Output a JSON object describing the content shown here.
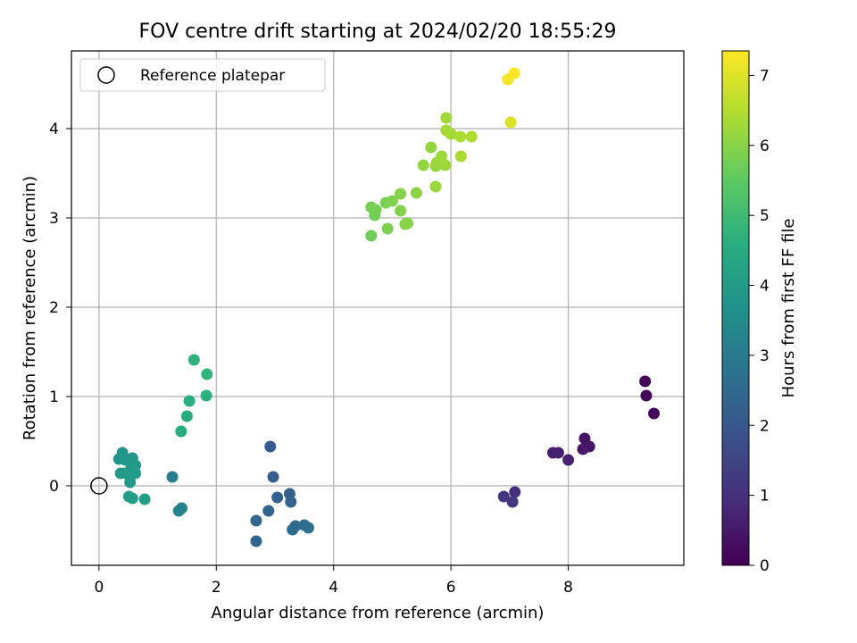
{
  "chart_data": {
    "type": "scatter",
    "title": "FOV centre drift starting at 2024/02/20 18:55:29",
    "xlabel": "Angular distance from reference (arcmin)",
    "ylabel": "Rotation from reference (arcmin)",
    "xlim": [
      -0.47,
      9.97
    ],
    "ylim": [
      -0.89,
      4.87
    ],
    "xticks": [
      0,
      2,
      4,
      6,
      8
    ],
    "yticks": [
      0,
      1,
      2,
      3,
      4
    ],
    "grid": true,
    "legend": {
      "placement": "upper-left",
      "entries": [
        {
          "label": "Reference platepar",
          "marker": "open-circle"
        }
      ]
    },
    "reference_point": {
      "x": 0,
      "y": 0
    },
    "colorbar": {
      "label": "Hours from first FF file",
      "colormap": "viridis",
      "range": [
        0,
        7.35
      ],
      "ticks": [
        0,
        1,
        2,
        3,
        4,
        5,
        6,
        7
      ]
    },
    "points": [
      {
        "x": 9.31,
        "y": 1.17,
        "h": 0.05
      },
      {
        "x": 9.33,
        "y": 1.01,
        "h": 0.1
      },
      {
        "x": 9.46,
        "y": 0.81,
        "h": 0.15
      },
      {
        "x": 8.28,
        "y": 0.53,
        "h": 0.4
      },
      {
        "x": 8.36,
        "y": 0.44,
        "h": 0.45
      },
      {
        "x": 8.25,
        "y": 0.41,
        "h": 0.5
      },
      {
        "x": 7.74,
        "y": 0.37,
        "h": 0.6
      },
      {
        "x": 7.83,
        "y": 0.37,
        "h": 0.65
      },
      {
        "x": 8.0,
        "y": 0.29,
        "h": 0.7
      },
      {
        "x": 7.09,
        "y": -0.07,
        "h": 1.05
      },
      {
        "x": 6.9,
        "y": -0.12,
        "h": 1.1
      },
      {
        "x": 7.05,
        "y": -0.18,
        "h": 1.15
      },
      {
        "x": 2.92,
        "y": 0.44,
        "h": 2.1
      },
      {
        "x": 2.97,
        "y": 0.1,
        "h": 2.15
      },
      {
        "x": 3.04,
        "y": -0.13,
        "h": 2.2
      },
      {
        "x": 3.25,
        "y": -0.09,
        "h": 2.25
      },
      {
        "x": 3.27,
        "y": -0.18,
        "h": 2.3
      },
      {
        "x": 2.89,
        "y": -0.28,
        "h": 2.35
      },
      {
        "x": 2.68,
        "y": -0.39,
        "h": 2.4
      },
      {
        "x": 2.68,
        "y": -0.62,
        "h": 2.45
      },
      {
        "x": 3.35,
        "y": -0.45,
        "h": 2.5
      },
      {
        "x": 3.3,
        "y": -0.49,
        "h": 2.55
      },
      {
        "x": 3.5,
        "y": -0.44,
        "h": 2.6
      },
      {
        "x": 3.57,
        "y": -0.47,
        "h": 2.65
      },
      {
        "x": 1.25,
        "y": 0.1,
        "h": 3.1
      },
      {
        "x": 1.36,
        "y": -0.28,
        "h": 3.2
      },
      {
        "x": 1.41,
        "y": -0.25,
        "h": 3.25
      },
      {
        "x": 0.4,
        "y": 0.37,
        "h": 3.75
      },
      {
        "x": 0.34,
        "y": 0.3,
        "h": 3.8
      },
      {
        "x": 0.45,
        "y": 0.29,
        "h": 3.85
      },
      {
        "x": 0.57,
        "y": 0.31,
        "h": 3.85
      },
      {
        "x": 0.62,
        "y": 0.23,
        "h": 3.9
      },
      {
        "x": 0.55,
        "y": 0.2,
        "h": 3.9
      },
      {
        "x": 0.37,
        "y": 0.14,
        "h": 3.95
      },
      {
        "x": 0.45,
        "y": 0.14,
        "h": 3.95
      },
      {
        "x": 0.62,
        "y": 0.14,
        "h": 4.0
      },
      {
        "x": 0.53,
        "y": 0.04,
        "h": 4.0
      },
      {
        "x": 0.51,
        "y": -0.12,
        "h": 4.05
      },
      {
        "x": 0.57,
        "y": -0.14,
        "h": 4.05
      },
      {
        "x": 0.78,
        "y": -0.15,
        "h": 4.1
      },
      {
        "x": 1.4,
        "y": 0.61,
        "h": 4.5
      },
      {
        "x": 1.5,
        "y": 0.78,
        "h": 4.55
      },
      {
        "x": 1.54,
        "y": 0.95,
        "h": 4.6
      },
      {
        "x": 1.83,
        "y": 1.01,
        "h": 4.65
      },
      {
        "x": 1.62,
        "y": 1.41,
        "h": 4.7
      },
      {
        "x": 1.84,
        "y": 1.25,
        "h": 4.75
      },
      {
        "x": 4.64,
        "y": 2.8,
        "h": 5.7
      },
      {
        "x": 4.7,
        "y": 3.03,
        "h": 5.75
      },
      {
        "x": 4.64,
        "y": 3.12,
        "h": 5.8
      },
      {
        "x": 4.72,
        "y": 3.09,
        "h": 5.8
      },
      {
        "x": 4.92,
        "y": 2.88,
        "h": 5.85
      },
      {
        "x": 4.89,
        "y": 3.17,
        "h": 5.85
      },
      {
        "x": 5.0,
        "y": 3.19,
        "h": 5.9
      },
      {
        "x": 5.14,
        "y": 3.27,
        "h": 5.95
      },
      {
        "x": 5.14,
        "y": 3.08,
        "h": 5.95
      },
      {
        "x": 5.22,
        "y": 2.93,
        "h": 6.0
      },
      {
        "x": 5.26,
        "y": 2.94,
        "h": 6.0
      },
      {
        "x": 5.41,
        "y": 3.28,
        "h": 6.05
      },
      {
        "x": 5.53,
        "y": 3.59,
        "h": 6.1
      },
      {
        "x": 5.66,
        "y": 3.79,
        "h": 6.15
      },
      {
        "x": 5.74,
        "y": 3.58,
        "h": 6.15
      },
      {
        "x": 5.76,
        "y": 3.62,
        "h": 6.2
      },
      {
        "x": 5.74,
        "y": 3.35,
        "h": 6.2
      },
      {
        "x": 5.84,
        "y": 3.69,
        "h": 6.25
      },
      {
        "x": 5.9,
        "y": 3.59,
        "h": 6.25
      },
      {
        "x": 5.92,
        "y": 4.12,
        "h": 6.3
      },
      {
        "x": 5.92,
        "y": 3.98,
        "h": 6.3
      },
      {
        "x": 6.0,
        "y": 3.94,
        "h": 6.35
      },
      {
        "x": 6.16,
        "y": 3.91,
        "h": 6.4
      },
      {
        "x": 6.17,
        "y": 3.69,
        "h": 6.4
      },
      {
        "x": 6.35,
        "y": 3.91,
        "h": 6.45
      },
      {
        "x": 7.02,
        "y": 4.07,
        "h": 6.95
      },
      {
        "x": 6.97,
        "y": 4.55,
        "h": 7.2
      },
      {
        "x": 7.08,
        "y": 4.62,
        "h": 7.3
      }
    ]
  }
}
